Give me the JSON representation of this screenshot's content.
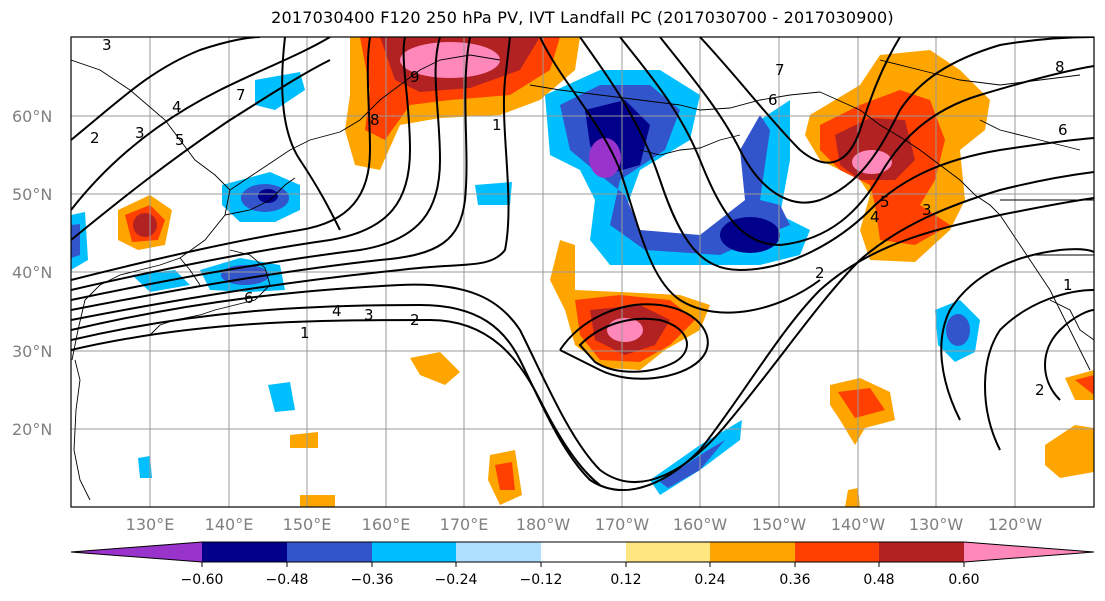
{
  "title": "2017030400 F120 250 hPa PV, IVT Landfall PC (2017030700 - 2017030900)",
  "lat_labels": [
    "60°N",
    "50°N",
    "40°N",
    "30°N",
    "20°N"
  ],
  "lon_labels": [
    "130°E",
    "140°E",
    "150°E",
    "160°E",
    "170°E",
    "180°W",
    "170°W",
    "160°W",
    "150°W",
    "140°W",
    "130°W",
    "120°W"
  ],
  "colorbar": {
    "ticks": [
      "−0.60",
      "−0.48",
      "−0.36",
      "−0.24",
      "−0.12",
      "0.12",
      "0.24",
      "0.36",
      "0.48",
      "0.60"
    ],
    "colors": [
      "#9933cc",
      "#00008b",
      "#3355cc",
      "#00bfff",
      "#b0e0ff",
      "#ffffff",
      "#ffe680",
      "#ffa500",
      "#ff4000",
      "#b22222",
      "#ff88bb"
    ]
  },
  "contour_labels": [
    "3",
    "2",
    "3",
    "4",
    "5",
    "7",
    "6",
    "8",
    "6",
    "1",
    "4",
    "3",
    "2",
    "1",
    "9",
    "8",
    "7",
    "6",
    "5",
    "4",
    "3",
    "2",
    "1",
    "2"
  ]
}
